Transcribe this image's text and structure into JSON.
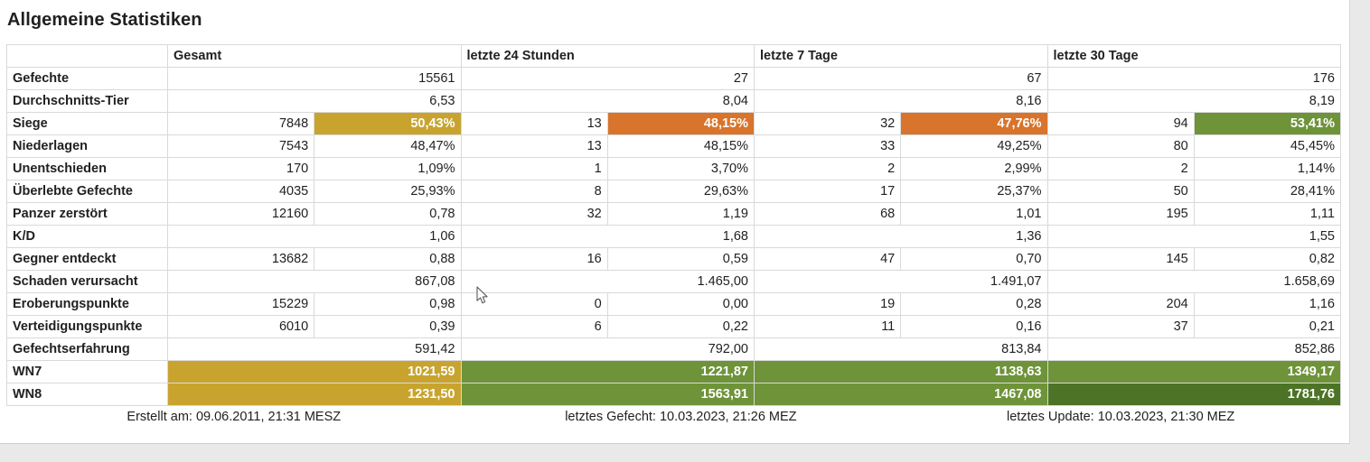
{
  "title": "Allgemeine Statistiken",
  "colors": {
    "gold": "#c8a42f",
    "orange": "#d8742b",
    "green": "#6e9339",
    "darkgreen": "#4d7326"
  },
  "table": {
    "corner": "",
    "groups": [
      "Gesamt",
      "letzte 24 Stunden",
      "letzte 7 Tage",
      "letzte 30 Tage"
    ],
    "rows": [
      {
        "label": "Gefechte",
        "periods": [
          {
            "value": "15561"
          },
          {
            "value": "27"
          },
          {
            "value": "67"
          },
          {
            "value": "176"
          }
        ]
      },
      {
        "label": "Durchschnitts-Tier",
        "periods": [
          {
            "value": "6,53"
          },
          {
            "value": "8,04"
          },
          {
            "value": "8,16"
          },
          {
            "value": "8,19"
          }
        ]
      },
      {
        "label": "Siege",
        "periods": [
          {
            "count": "7848",
            "value": "50,43%",
            "color": "gold"
          },
          {
            "count": "13",
            "value": "48,15%",
            "color": "orange"
          },
          {
            "count": "32",
            "value": "47,76%",
            "color": "orange"
          },
          {
            "count": "94",
            "value": "53,41%",
            "color": "green"
          }
        ]
      },
      {
        "label": "Niederlagen",
        "periods": [
          {
            "count": "7543",
            "value": "48,47%"
          },
          {
            "count": "13",
            "value": "48,15%"
          },
          {
            "count": "33",
            "value": "49,25%"
          },
          {
            "count": "80",
            "value": "45,45%"
          }
        ]
      },
      {
        "label": "Unentschieden",
        "periods": [
          {
            "count": "170",
            "value": "1,09%"
          },
          {
            "count": "1",
            "value": "3,70%"
          },
          {
            "count": "2",
            "value": "2,99%"
          },
          {
            "count": "2",
            "value": "1,14%"
          }
        ]
      },
      {
        "label": "Überlebte Gefechte",
        "periods": [
          {
            "count": "4035",
            "value": "25,93%"
          },
          {
            "count": "8",
            "value": "29,63%"
          },
          {
            "count": "17",
            "value": "25,37%"
          },
          {
            "count": "50",
            "value": "28,41%"
          }
        ]
      },
      {
        "label": "Panzer zerstört",
        "periods": [
          {
            "count": "12160",
            "value": "0,78"
          },
          {
            "count": "32",
            "value": "1,19"
          },
          {
            "count": "68",
            "value": "1,01"
          },
          {
            "count": "195",
            "value": "1,11"
          }
        ]
      },
      {
        "label": "K/D",
        "periods": [
          {
            "value": "1,06"
          },
          {
            "value": "1,68"
          },
          {
            "value": "1,36"
          },
          {
            "value": "1,55"
          }
        ]
      },
      {
        "label": "Gegner entdeckt",
        "periods": [
          {
            "count": "13682",
            "value": "0,88"
          },
          {
            "count": "16",
            "value": "0,59"
          },
          {
            "count": "47",
            "value": "0,70"
          },
          {
            "count": "145",
            "value": "0,82"
          }
        ]
      },
      {
        "label": "Schaden verursacht",
        "periods": [
          {
            "value": "867,08"
          },
          {
            "value": "1.465,00"
          },
          {
            "value": "1.491,07"
          },
          {
            "value": "1.658,69"
          }
        ]
      },
      {
        "label": "Eroberungspunkte",
        "periods": [
          {
            "count": "15229",
            "value": "0,98"
          },
          {
            "count": "0",
            "value": "0,00"
          },
          {
            "count": "19",
            "value": "0,28"
          },
          {
            "count": "204",
            "value": "1,16"
          }
        ]
      },
      {
        "label": "Verteidigungspunkte",
        "periods": [
          {
            "count": "6010",
            "value": "0,39"
          },
          {
            "count": "6",
            "value": "0,22"
          },
          {
            "count": "11",
            "value": "0,16"
          },
          {
            "count": "37",
            "value": "0,21"
          }
        ]
      },
      {
        "label": "Gefechtserfahrung",
        "periods": [
          {
            "value": "591,42"
          },
          {
            "value": "792,00"
          },
          {
            "value": "813,84"
          },
          {
            "value": "852,86"
          }
        ]
      },
      {
        "label": "WN7",
        "periods": [
          {
            "value": "1021,59",
            "color": "gold"
          },
          {
            "value": "1221,87",
            "color": "green"
          },
          {
            "value": "1138,63",
            "color": "green"
          },
          {
            "value": "1349,17",
            "color": "green"
          }
        ]
      },
      {
        "label": "WN8",
        "periods": [
          {
            "value": "1231,50",
            "color": "gold"
          },
          {
            "value": "1563,91",
            "color": "green"
          },
          {
            "value": "1467,08",
            "color": "green"
          },
          {
            "value": "1781,76",
            "color": "darkgreen"
          }
        ]
      }
    ]
  },
  "footer": [
    "Erstellt am: 09.06.2011, 21:31 MESZ",
    "letztes Gefecht: 10.03.2023, 21:26 MEZ",
    "letztes Update: 10.03.2023, 21:30 MEZ"
  ]
}
